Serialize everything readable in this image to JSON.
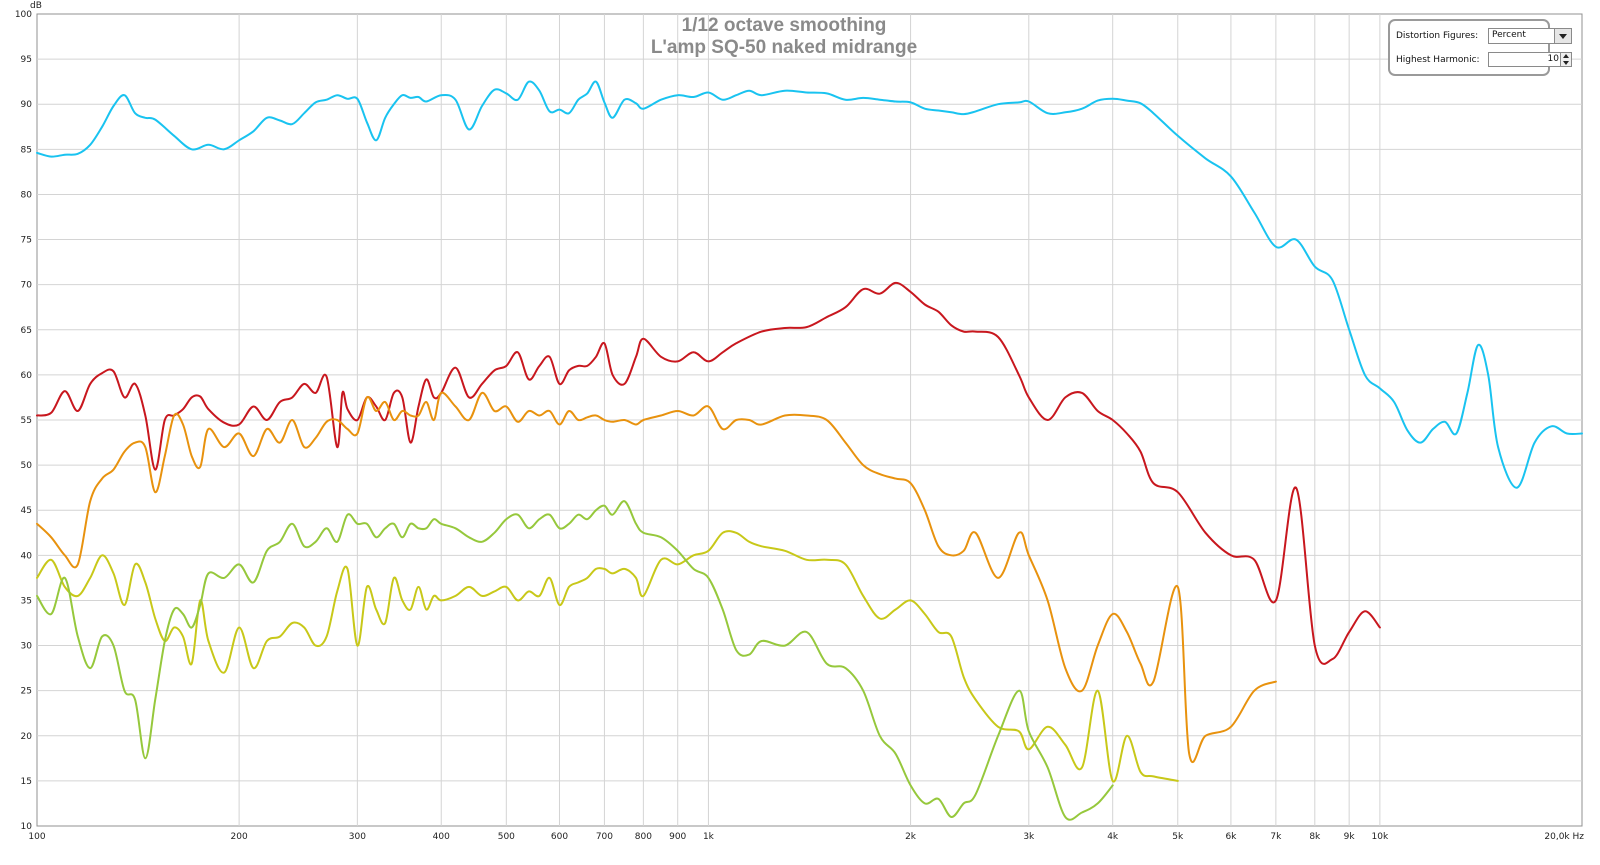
{
  "chart_data": {
    "type": "line",
    "title": "1/12 octave smoothing",
    "subtitle": "L'amp SQ-50 naked midrange",
    "ylabel": "dB",
    "xlabel": "Hz",
    "x_scale": "log",
    "xlim": [
      100,
      20000
    ],
    "ylim": [
      10,
      100
    ],
    "grid": true,
    "y_ticks": [
      10,
      15,
      20,
      25,
      30,
      35,
      40,
      45,
      50,
      55,
      60,
      65,
      70,
      75,
      80,
      85,
      90,
      95,
      100
    ],
    "x_ticks": [
      {
        "v": 100,
        "label": "100"
      },
      {
        "v": 200,
        "label": "200"
      },
      {
        "v": 300,
        "label": "300"
      },
      {
        "v": 400,
        "label": "400"
      },
      {
        "v": 500,
        "label": "500"
      },
      {
        "v": 600,
        "label": "600"
      },
      {
        "v": 700,
        "label": "700"
      },
      {
        "v": 800,
        "label": "800"
      },
      {
        "v": 900,
        "label": "900"
      },
      {
        "v": 1000,
        "label": "1k"
      },
      {
        "v": 2000,
        "label": "2k"
      },
      {
        "v": 3000,
        "label": "3k"
      },
      {
        "v": 4000,
        "label": "4k"
      },
      {
        "v": 5000,
        "label": "5k"
      },
      {
        "v": 6000,
        "label": "6k"
      },
      {
        "v": 7000,
        "label": "7k"
      },
      {
        "v": 8000,
        "label": "8k"
      },
      {
        "v": 9000,
        "label": "9k"
      },
      {
        "v": 10000,
        "label": "10k"
      },
      {
        "v": 20000,
        "label": "20,0k Hz"
      }
    ],
    "series": [
      {
        "color": "#19c3f0",
        "x": [
          100,
          105,
          110,
          115,
          120,
          125,
          130,
          135,
          140,
          145,
          150,
          160,
          170,
          180,
          190,
          200,
          210,
          220,
          230,
          240,
          250,
          260,
          270,
          280,
          290,
          300,
          310,
          320,
          330,
          340,
          350,
          360,
          370,
          380,
          400,
          420,
          440,
          460,
          480,
          500,
          520,
          540,
          560,
          580,
          600,
          620,
          640,
          660,
          680,
          700,
          720,
          750,
          780,
          800,
          850,
          900,
          950,
          1000,
          1050,
          1100,
          1150,
          1200,
          1300,
          1400,
          1500,
          1600,
          1700,
          1800,
          1900,
          2000,
          2100,
          2200,
          2300,
          2400,
          2500,
          2700,
          2900,
          3000,
          3200,
          3400,
          3600,
          3800,
          4000,
          4200,
          4400,
          4600,
          5000,
          5500,
          6000,
          6500,
          7000,
          7500,
          8000,
          8500,
          9000,
          9500,
          10000,
          10500,
          11000,
          11500,
          12000,
          12500,
          13000,
          13500,
          14000,
          14500,
          15000,
          16000,
          17000,
          18000,
          19000,
          20000
        ],
        "y": [
          84.6,
          84.2,
          84.4,
          84.5,
          85.5,
          87.5,
          89.8,
          91.0,
          89.0,
          88.5,
          88.3,
          86.5,
          85.0,
          85.5,
          85.0,
          86.0,
          87.0,
          88.5,
          88.2,
          87.8,
          89.0,
          90.2,
          90.5,
          91.0,
          90.6,
          90.6,
          88.0,
          86.0,
          88.5,
          90.0,
          91.0,
          90.7,
          90.8,
          90.3,
          91.0,
          90.5,
          87.2,
          89.8,
          91.6,
          91.2,
          90.5,
          92.5,
          91.5,
          89.2,
          89.4,
          89.0,
          90.5,
          91.2,
          92.5,
          90.2,
          88.5,
          90.5,
          90.1,
          89.5,
          90.5,
          91.0,
          90.8,
          91.3,
          90.5,
          91.0,
          91.5,
          91.0,
          91.5,
          91.3,
          91.2,
          90.5,
          90.7,
          90.5,
          90.3,
          90.2,
          89.5,
          89.3,
          89.1,
          88.9,
          89.2,
          90.0,
          90.2,
          90.3,
          89.0,
          89.1,
          89.5,
          90.4,
          90.6,
          90.4,
          90.1,
          89.0,
          86.5,
          84.0,
          82.0,
          78.0,
          74.2,
          75.0,
          72.0,
          70.5,
          65.0,
          60.0,
          58.5,
          57.0,
          53.8,
          52.5,
          54.0,
          54.8,
          53.5,
          58.0,
          63.3,
          60.0,
          52.0,
          47.5,
          52.5,
          54.3,
          53.5,
          53.5
        ]
      },
      {
        "color": "#c8171e",
        "x": [
          100,
          105,
          110,
          115,
          120,
          125,
          130,
          135,
          140,
          145,
          150,
          155,
          160,
          165,
          170,
          175,
          180,
          190,
          200,
          210,
          220,
          230,
          240,
          250,
          260,
          270,
          280,
          285,
          290,
          300,
          310,
          320,
          330,
          340,
          350,
          360,
          370,
          380,
          390,
          400,
          420,
          440,
          460,
          480,
          500,
          520,
          540,
          560,
          580,
          600,
          620,
          640,
          660,
          680,
          700,
          720,
          750,
          780,
          800,
          850,
          900,
          950,
          1000,
          1050,
          1100,
          1200,
          1300,
          1400,
          1500,
          1600,
          1700,
          1800,
          1900,
          2000,
          2100,
          2200,
          2300,
          2400,
          2500,
          2700,
          2900,
          3000,
          3200,
          3400,
          3600,
          3800,
          4000,
          4200,
          4400,
          4600,
          5000,
          5500,
          6000,
          6500,
          7000,
          7500,
          8000,
          8500,
          9000,
          9500,
          10000
        ],
        "y": [
          55.5,
          55.8,
          58.2,
          56.0,
          59.0,
          60.2,
          60.4,
          57.5,
          59.0,
          55.5,
          49.5,
          55.0,
          55.5,
          56.2,
          57.5,
          57.6,
          56.2,
          54.7,
          54.5,
          56.5,
          55.0,
          57.0,
          57.5,
          59.0,
          58.0,
          59.8,
          52.0,
          58.0,
          56.2,
          55.0,
          57.5,
          56.5,
          55.0,
          58.0,
          57.5,
          52.5,
          56.5,
          59.5,
          57.5,
          58.0,
          60.8,
          57.5,
          59.0,
          60.5,
          61.0,
          62.5,
          59.5,
          61.0,
          62.0,
          59.0,
          60.5,
          61.0,
          61.0,
          62.0,
          63.5,
          60.0,
          59.0,
          62.0,
          64.0,
          62.0,
          61.5,
          62.5,
          61.5,
          62.5,
          63.5,
          64.8,
          65.2,
          65.3,
          66.4,
          67.5,
          69.5,
          69.0,
          70.2,
          69.2,
          67.8,
          67.0,
          65.5,
          64.8,
          64.8,
          64.2,
          60.0,
          57.5,
          55.0,
          57.5,
          58.0,
          56.0,
          55.0,
          53.5,
          51.5,
          48.0,
          47.0,
          42.5,
          40.0,
          39.5,
          35.0,
          47.5,
          30.0,
          28.5,
          31.5,
          33.8,
          32.0
        ]
      },
      {
        "color": "#e8920e",
        "x": [
          100,
          105,
          110,
          115,
          120,
          125,
          130,
          135,
          140,
          145,
          150,
          155,
          160,
          165,
          170,
          175,
          180,
          190,
          200,
          210,
          220,
          230,
          240,
          250,
          260,
          270,
          280,
          290,
          300,
          310,
          320,
          330,
          340,
          350,
          360,
          370,
          380,
          390,
          400,
          420,
          440,
          460,
          480,
          500,
          520,
          540,
          560,
          580,
          600,
          620,
          640,
          660,
          680,
          700,
          720,
          750,
          780,
          800,
          850,
          900,
          950,
          1000,
          1050,
          1100,
          1150,
          1200,
          1300,
          1400,
          1500,
          1600,
          1700,
          1800,
          1900,
          2000,
          2100,
          2200,
          2300,
          2400,
          2500,
          2700,
          2900,
          3000,
          3200,
          3400,
          3600,
          3800,
          4000,
          4200,
          4400,
          4600,
          5000,
          5200,
          5500,
          6000,
          6500,
          7000
        ],
        "y": [
          43.5,
          42.0,
          40.0,
          39.0,
          46.0,
          48.5,
          49.5,
          51.5,
          52.5,
          52.0,
          47.0,
          51.0,
          55.5,
          54.5,
          51.0,
          49.8,
          54.0,
          52.0,
          53.5,
          51.0,
          54.0,
          52.5,
          55.0,
          52.0,
          53.0,
          54.8,
          55.0,
          54.0,
          53.5,
          57.5,
          56.0,
          57.0,
          55.0,
          56.0,
          55.5,
          55.5,
          57.0,
          55.0,
          58.0,
          56.5,
          55.0,
          58.0,
          56.0,
          56.5,
          54.8,
          56.0,
          55.5,
          56.0,
          54.5,
          56.0,
          55.0,
          55.3,
          55.5,
          55.0,
          54.8,
          55.0,
          54.5,
          55.0,
          55.5,
          56.0,
          55.5,
          56.5,
          54.0,
          55.0,
          55.0,
          54.5,
          55.5,
          55.5,
          55.0,
          52.5,
          50.0,
          49.0,
          48.5,
          48.0,
          45.0,
          41.0,
          40.0,
          40.5,
          42.5,
          37.5,
          42.5,
          40.0,
          35.0,
          27.5,
          25.0,
          30.0,
          33.5,
          31.5,
          28.0,
          26.0,
          36.5,
          18.0,
          20.0,
          21.0,
          25.0,
          26.0
        ]
      },
      {
        "color": "#c8c819",
        "x": [
          100,
          105,
          110,
          115,
          120,
          125,
          130,
          135,
          140,
          145,
          150,
          155,
          160,
          165,
          170,
          175,
          180,
          190,
          200,
          210,
          220,
          230,
          240,
          250,
          260,
          270,
          280,
          290,
          300,
          310,
          320,
          330,
          340,
          350,
          360,
          370,
          380,
          390,
          400,
          420,
          440,
          460,
          480,
          500,
          520,
          540,
          560,
          580,
          600,
          620,
          640,
          660,
          680,
          700,
          720,
          750,
          780,
          800,
          850,
          900,
          950,
          1000,
          1050,
          1100,
          1150,
          1200,
          1300,
          1400,
          1500,
          1600,
          1700,
          1800,
          1900,
          2000,
          2100,
          2200,
          2300,
          2400,
          2500,
          2700,
          2900,
          3000,
          3200,
          3400,
          3600,
          3800,
          4000,
          4200,
          4400,
          4600,
          5000
        ],
        "y": [
          37.5,
          39.5,
          36.5,
          35.5,
          37.5,
          40.0,
          38.0,
          34.5,
          39.0,
          37.0,
          33.0,
          30.5,
          32.0,
          31.0,
          28.0,
          35.0,
          30.5,
          27.0,
          32.0,
          27.5,
          30.5,
          31.0,
          32.5,
          32.0,
          30.0,
          31.0,
          36.0,
          38.5,
          30.0,
          36.5,
          34.0,
          32.5,
          37.5,
          35.0,
          34.0,
          36.5,
          34.0,
          35.5,
          35.0,
          35.5,
          36.5,
          35.5,
          36.0,
          36.5,
          35.0,
          36.0,
          35.5,
          37.5,
          34.5,
          36.5,
          37.0,
          37.5,
          38.5,
          38.5,
          38.0,
          38.5,
          37.5,
          35.5,
          39.5,
          39.0,
          40.0,
          40.5,
          42.5,
          42.5,
          41.5,
          41.0,
          40.5,
          39.5,
          39.5,
          39.0,
          35.5,
          33.0,
          34.0,
          35.0,
          33.5,
          31.5,
          31.0,
          26.5,
          24.0,
          21.0,
          20.5,
          18.5,
          21.0,
          19.0,
          16.5,
          25.0,
          15.0,
          20.0,
          16.0,
          15.5,
          15.0
        ]
      },
      {
        "color": "#96c83c",
        "x": [
          100,
          105,
          110,
          115,
          120,
          125,
          130,
          135,
          140,
          145,
          150,
          155,
          160,
          165,
          170,
          175,
          180,
          190,
          200,
          210,
          220,
          230,
          240,
          250,
          260,
          270,
          280,
          290,
          300,
          310,
          320,
          330,
          340,
          350,
          360,
          370,
          380,
          390,
          400,
          420,
          440,
          460,
          480,
          500,
          520,
          540,
          560,
          580,
          600,
          620,
          640,
          660,
          680,
          700,
          720,
          750,
          780,
          800,
          850,
          900,
          950,
          1000,
          1050,
          1100,
          1150,
          1200,
          1300,
          1400,
          1500,
          1600,
          1700,
          1800,
          1900,
          2000,
          2100,
          2200,
          2300,
          2400,
          2500,
          2700,
          2900,
          3000,
          3200,
          3400,
          3600,
          3800,
          4000
        ],
        "y": [
          35.5,
          33.5,
          37.5,
          31.0,
          27.5,
          31.0,
          30.0,
          25.0,
          24.0,
          17.5,
          24.0,
          30.5,
          34.0,
          33.5,
          32.0,
          34.5,
          38.0,
          37.5,
          39.0,
          37.0,
          40.5,
          41.5,
          43.5,
          41.0,
          41.5,
          43.0,
          41.5,
          44.5,
          43.5,
          43.5,
          42.0,
          43.0,
          43.5,
          42.0,
          43.5,
          43.0,
          43.0,
          44.0,
          43.5,
          43.0,
          42.0,
          41.5,
          42.5,
          44.0,
          44.5,
          43.0,
          44.0,
          44.5,
          43.0,
          43.5,
          44.5,
          44.0,
          45.0,
          45.5,
          44.5,
          46.0,
          43.5,
          42.5,
          42.0,
          40.5,
          38.5,
          37.5,
          34.0,
          29.5,
          29.0,
          30.5,
          30.0,
          31.5,
          28.0,
          27.5,
          25.0,
          20.0,
          18.0,
          14.5,
          12.5,
          13.0,
          11.0,
          12.5,
          13.5,
          20.0,
          25.0,
          20.5,
          16.5,
          11.0,
          11.5,
          12.5,
          14.5
        ]
      }
    ]
  },
  "controls": {
    "distortion_label": "Distortion Figures:",
    "distortion_value": "Percent",
    "harmonic_label": "Highest Harmonic:",
    "harmonic_value": "10"
  }
}
